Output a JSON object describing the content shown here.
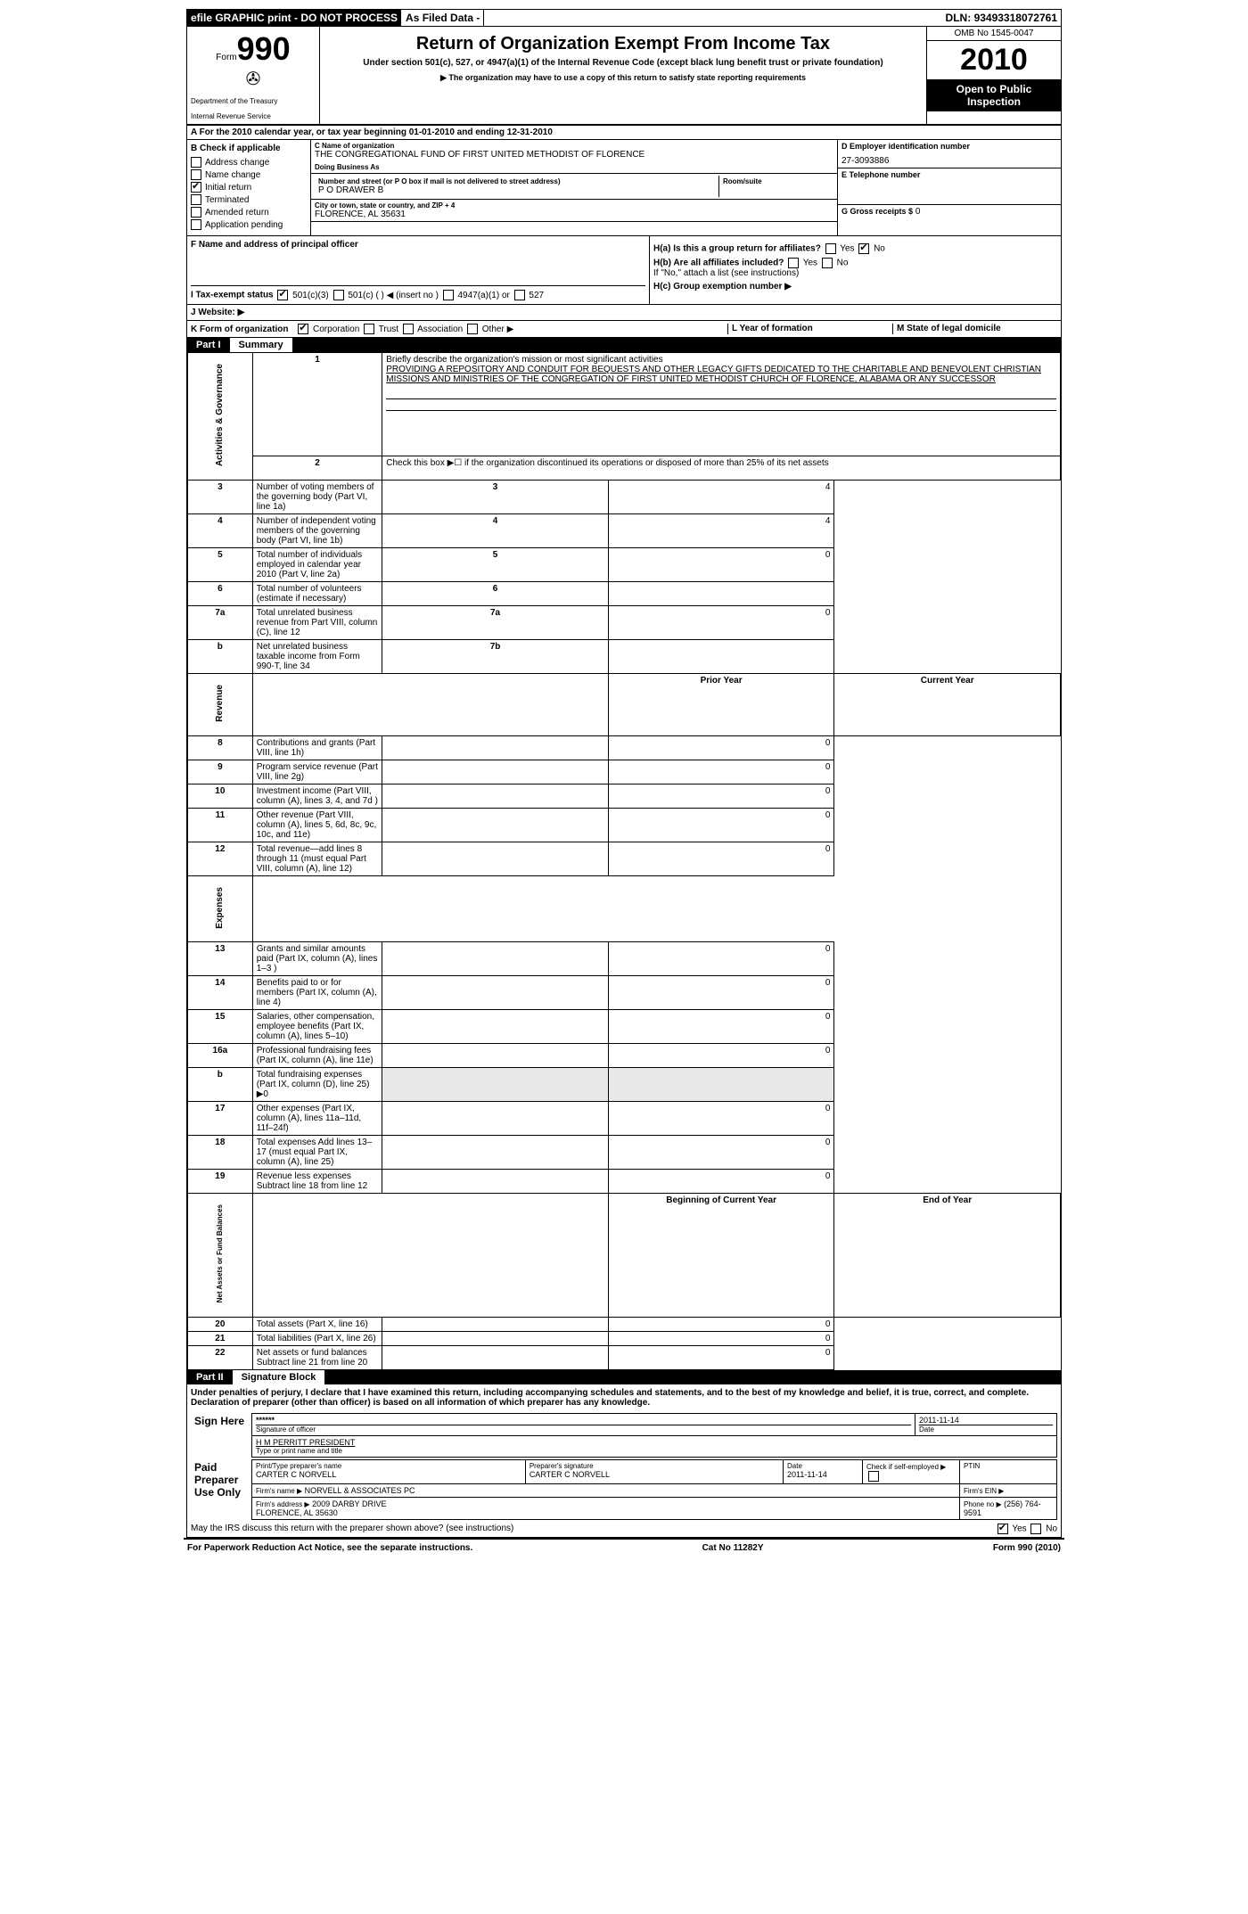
{
  "topbar": {
    "efile": "efile GRAPHIC print - DO NOT PROCESS",
    "filed": "As Filed Data -",
    "dln_label": "DLN:",
    "dln": "93493318072761"
  },
  "header": {
    "form_label": "Form",
    "form_no": "990",
    "dept1": "Department of the Treasury",
    "dept2": "Internal Revenue Service",
    "title": "Return of Organization Exempt From Income Tax",
    "subtitle": "Under section 501(c), 527, or 4947(a)(1) of the Internal Revenue Code (except black lung benefit trust or private foundation)",
    "note": "▶ The organization may have to use a copy of this return to satisfy state reporting requirements",
    "omb": "OMB No 1545-0047",
    "year": "2010",
    "open": "Open to Public Inspection"
  },
  "rowA": "A  For the 2010 calendar year, or tax year beginning 01-01-2010    and ending 12-31-2010",
  "colB": {
    "label": "B Check if applicable",
    "items": [
      {
        "label": "Address change",
        "checked": false
      },
      {
        "label": "Name change",
        "checked": false
      },
      {
        "label": "Initial return",
        "checked": true
      },
      {
        "label": "Terminated",
        "checked": false
      },
      {
        "label": "Amended return",
        "checked": false
      },
      {
        "label": "Application pending",
        "checked": false
      }
    ]
  },
  "colC": {
    "name_lbl": "C Name of organization",
    "name": "THE CONGREGATIONAL FUND OF FIRST UNITED METHODIST OF FLORENCE",
    "dba_lbl": "Doing Business As",
    "dba": "",
    "street_lbl": "Number and street (or P O  box if mail is not delivered to street address)",
    "street": "P O DRAWER B",
    "room_lbl": "Room/suite",
    "city_lbl": "City or town, state or country, and ZIP + 4",
    "city": "FLORENCE, AL  35631"
  },
  "colD": {
    "ein_lbl": "D Employer identification number",
    "ein": "27-3093886",
    "phone_lbl": "E Telephone number",
    "phone": "",
    "gross_lbl": "G Gross receipts $",
    "gross": "0"
  },
  "sectionFH": {
    "f_lbl": "F   Name and address of principal officer",
    "ha": "H(a)  Is this a group return for affiliates?",
    "ha_no_checked": true,
    "hb": "H(b)  Are all affiliates included?",
    "hb_note": "If \"No,\" attach a list  (see instructions)",
    "hc": "H(c)   Group exemption number ▶"
  },
  "lineI": {
    "lbl": "I   Tax-exempt status",
    "opts": [
      "501(c)(3)",
      "501(c) (   ) ◀ (insert no )",
      "4947(a)(1) or",
      "527"
    ],
    "checked_idx": 0
  },
  "lineJ": {
    "lbl": "J  Website: ▶",
    "val": ""
  },
  "lineK": {
    "lbl": "K Form of organization",
    "opts": [
      "Corporation",
      "Trust",
      "Association",
      "Other ▶"
    ],
    "checked_idx": 0,
    "l_lbl": "L Year of formation",
    "m_lbl": "M State of legal domicile"
  },
  "part1": {
    "num": "Part I",
    "title": "Summary"
  },
  "summary": {
    "side1": "Activities & Governance",
    "side2": "Revenue",
    "side3": "Expenses",
    "side4": "Net Assets or Fund Balances",
    "l1": "Briefly describe the organization's mission or most significant activities",
    "mission": "PROVIDING A REPOSITORY AND CONDUIT FOR BEQUESTS AND OTHER LEGACY GIFTS DEDICATED TO THE CHARITABLE AND BENEVOLENT CHRISTIAN MISSIONS AND MINISTRIES OF THE CONGREGATION OF FIRST UNITED METHODIST CHURCH OF FLORENCE, ALABAMA OR ANY SUCCESSOR",
    "l2": "Check this box ▶☐ if the organization discontinued its operations or disposed of more than 25% of its net assets",
    "rows_ag": [
      {
        "n": "3",
        "t": "Number of voting members of the governing body (Part VI, line 1a)",
        "box": "3",
        "v": "4"
      },
      {
        "n": "4",
        "t": "Number of independent voting members of the governing body (Part VI, line 1b)",
        "box": "4",
        "v": "4"
      },
      {
        "n": "5",
        "t": "Total number of individuals employed in calendar year 2010 (Part V, line 2a)",
        "box": "5",
        "v": "0"
      },
      {
        "n": "6",
        "t": "Total number of volunteers (estimate if necessary)",
        "box": "6",
        "v": ""
      },
      {
        "n": "7a",
        "t": "Total unrelated business revenue from Part VIII, column (C), line 12",
        "box": "7a",
        "v": "0"
      },
      {
        "n": "b",
        "t": "Net unrelated business taxable income from Form 990-T, line 34",
        "box": "7b",
        "v": ""
      }
    ],
    "col_hdr": {
      "py": "Prior Year",
      "cy": "Current Year",
      "boy": "Beginning of Current Year",
      "eoy": "End of Year"
    },
    "rows_rev": [
      {
        "n": "8",
        "t": "Contributions and grants (Part VIII, line 1h)",
        "py": "",
        "cy": "0"
      },
      {
        "n": "9",
        "t": "Program service revenue (Part VIII, line 2g)",
        "py": "",
        "cy": "0"
      },
      {
        "n": "10",
        "t": "Investment income (Part VIII, column (A), lines 3, 4, and 7d )",
        "py": "",
        "cy": "0"
      },
      {
        "n": "11",
        "t": "Other revenue (Part VIII, column (A), lines 5, 6d, 8c, 9c, 10c, and 11e)",
        "py": "",
        "cy": "0"
      },
      {
        "n": "12",
        "t": "Total revenue—add lines 8 through 11 (must equal Part VIII, column (A), line 12)",
        "py": "",
        "cy": "0"
      }
    ],
    "rows_exp": [
      {
        "n": "13",
        "t": "Grants and similar amounts paid (Part IX, column (A), lines 1–3 )",
        "py": "",
        "cy": "0"
      },
      {
        "n": "14",
        "t": "Benefits paid to or for members (Part IX, column (A), line 4)",
        "py": "",
        "cy": "0"
      },
      {
        "n": "15",
        "t": "Salaries, other compensation, employee benefits (Part IX, column (A), lines 5–10)",
        "py": "",
        "cy": "0"
      },
      {
        "n": "16a",
        "t": "Professional fundraising fees (Part IX, column (A), line 11e)",
        "py": "",
        "cy": "0"
      },
      {
        "n": "b",
        "t": "Total fundraising expenses (Part IX, column (D), line 25) ▶0",
        "py": "—",
        "cy": "—"
      },
      {
        "n": "17",
        "t": "Other expenses (Part IX, column (A), lines 11a–11d, 11f–24f)",
        "py": "",
        "cy": "0"
      },
      {
        "n": "18",
        "t": "Total expenses  Add lines 13–17 (must equal Part IX, column (A), line 25)",
        "py": "",
        "cy": "0"
      },
      {
        "n": "19",
        "t": "Revenue less expenses  Subtract line 18 from line 12",
        "py": "",
        "cy": "0"
      }
    ],
    "rows_na": [
      {
        "n": "20",
        "t": "Total assets (Part X, line 16)",
        "py": "",
        "cy": "0"
      },
      {
        "n": "21",
        "t": "Total liabilities (Part X, line 26)",
        "py": "",
        "cy": "0"
      },
      {
        "n": "22",
        "t": "Net assets or fund balances  Subtract line 21 from line 20",
        "py": "",
        "cy": "0"
      }
    ]
  },
  "part2": {
    "num": "Part II",
    "title": "Signature Block"
  },
  "sig": {
    "perjury": "Under penalties of perjury, I declare that I have examined this return, including accompanying schedules and statements, and to the best of my knowledge and belief, it is true, correct, and complete. Declaration of preparer (other than officer) is based on all information of which preparer has any knowledge.",
    "sign_here": "Sign Here",
    "stars": "******",
    "sig_officer_lbl": "Signature of officer",
    "sig_date": "2011-11-14",
    "date_lbl": "Date",
    "officer_name": "H M PERRITT  PRESIDENT",
    "officer_name_lbl": "Type or print name and title",
    "paid_lbl": "Paid Preparer Use Only",
    "prep_name_lbl": "Print/Type preparer's name",
    "prep_name": "CARTER C NORVELL",
    "prep_sig_lbl": "Preparer's signature",
    "prep_sig": "CARTER C NORVELL",
    "prep_date_lbl": "Date",
    "prep_date": "2011-11-14",
    "self_emp_lbl": "Check if self-employed ▶",
    "ptin_lbl": "PTIN",
    "firm_name_lbl": "Firm's name  ▶",
    "firm_name": "NORVELL & ASSOCIATES PC",
    "firm_ein_lbl": "Firm's EIN  ▶",
    "firm_addr_lbl": "Firm's address ▶",
    "firm_addr": "2009 DARBY DRIVE\nFLORENCE, AL  35630",
    "firm_phone_lbl": "Phone no  ▶",
    "firm_phone": "(256) 764-9591",
    "discuss": "May the IRS discuss this return with the preparer shown above? (see instructions)",
    "discuss_yes": true
  },
  "footer": {
    "pra": "For Paperwork Reduction Act Notice, see the separate instructions.",
    "cat": "Cat No 11282Y",
    "form": "Form 990 (2010)"
  }
}
